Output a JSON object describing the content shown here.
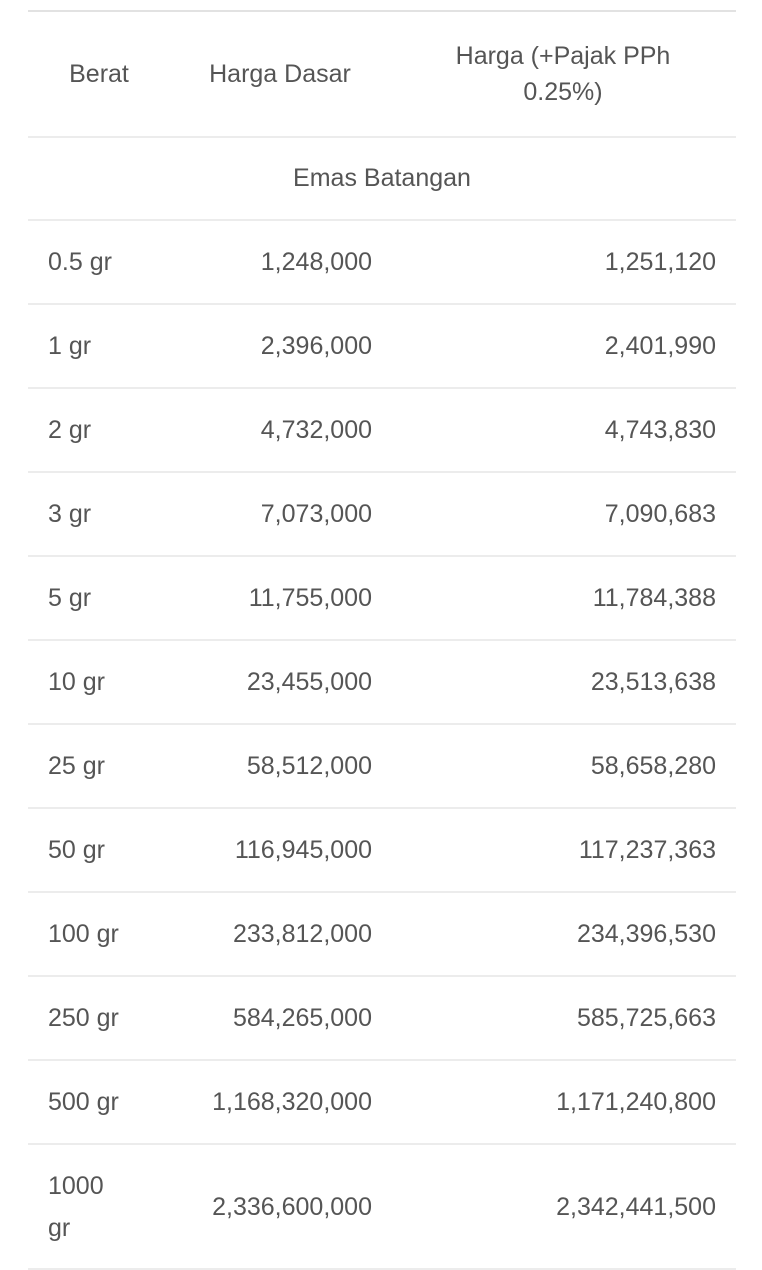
{
  "table": {
    "header": [
      "Berat",
      "Harga Dasar",
      "Harga (+Pajak PPh 0.25%)"
    ],
    "section": "Emas Batangan",
    "rows": [
      [
        "0.5 gr",
        "1,248,000",
        "1,251,120"
      ],
      [
        "1 gr",
        "2,396,000",
        "2,401,990"
      ],
      [
        "2 gr",
        "4,732,000",
        "4,743,830"
      ],
      [
        "3 gr",
        "7,073,000",
        "7,090,683"
      ],
      [
        "5 gr",
        "11,755,000",
        "11,784,388"
      ],
      [
        "10 gr",
        "23,455,000",
        "23,513,638"
      ],
      [
        "25 gr",
        "58,512,000",
        "58,658,280"
      ],
      [
        "50 gr",
        "116,945,000",
        "117,237,363"
      ],
      [
        "100 gr",
        "233,812,000",
        "234,396,530"
      ],
      [
        "250 gr",
        "584,265,000",
        "585,725,663"
      ],
      [
        "500 gr",
        "1,168,320,000",
        "1,171,240,800"
      ],
      [
        "1000 gr",
        "2,336,600,000",
        "2,342,441,500"
      ]
    ]
  }
}
